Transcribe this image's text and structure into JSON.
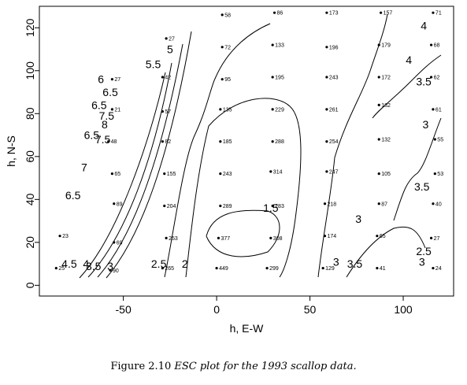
{
  "caption": {
    "prefix": "Figure 2.10",
    "italic": "ESC plot for the 1993 scallop data."
  },
  "chart_data": {
    "type": "scatter",
    "xlabel": "h, E-W",
    "ylabel": "h, N-S",
    "xlim": [
      -95,
      127
    ],
    "ylim": [
      -5,
      130
    ],
    "xticks": [
      -50,
      0,
      50,
      100
    ],
    "yticks": [
      0,
      20,
      40,
      60,
      80,
      100,
      120
    ],
    "points": [
      {
        "x": 3,
        "y": 126,
        "label": "58"
      },
      {
        "x": 31,
        "y": 127,
        "label": "86"
      },
      {
        "x": 59,
        "y": 127,
        "label": "173"
      },
      {
        "x": 88,
        "y": 127,
        "label": "157"
      },
      {
        "x": 116,
        "y": 127,
        "label": "71"
      },
      {
        "x": -27,
        "y": 115,
        "label": "27"
      },
      {
        "x": 3,
        "y": 111,
        "label": "72"
      },
      {
        "x": 30,
        "y": 112,
        "label": "133"
      },
      {
        "x": 59,
        "y": 111,
        "label": "196"
      },
      {
        "x": 87,
        "y": 112,
        "label": "179"
      },
      {
        "x": 115,
        "y": 112,
        "label": "68"
      },
      {
        "x": -56,
        "y": 96,
        "label": "27"
      },
      {
        "x": -29,
        "y": 97,
        "label": "42"
      },
      {
        "x": 3,
        "y": 96,
        "label": "95"
      },
      {
        "x": 30,
        "y": 97,
        "label": "195"
      },
      {
        "x": 59,
        "y": 97,
        "label": "243"
      },
      {
        "x": 87,
        "y": 97,
        "label": "172"
      },
      {
        "x": 115,
        "y": 97,
        "label": "62"
      },
      {
        "x": -56,
        "y": 82,
        "label": "21"
      },
      {
        "x": -29,
        "y": 81,
        "label": "57"
      },
      {
        "x": 2,
        "y": 82,
        "label": "135"
      },
      {
        "x": 30,
        "y": 82,
        "label": "229"
      },
      {
        "x": 59,
        "y": 82,
        "label": "261"
      },
      {
        "x": 87,
        "y": 84,
        "label": "182"
      },
      {
        "x": 116,
        "y": 82,
        "label": "61"
      },
      {
        "x": -58,
        "y": 67,
        "label": "48"
      },
      {
        "x": -29,
        "y": 67,
        "label": "82"
      },
      {
        "x": 2,
        "y": 67,
        "label": "185"
      },
      {
        "x": 30,
        "y": 67,
        "label": "288"
      },
      {
        "x": 59,
        "y": 67,
        "label": "254"
      },
      {
        "x": 87,
        "y": 68,
        "label": "132"
      },
      {
        "x": 117,
        "y": 68,
        "label": "55"
      },
      {
        "x": -56,
        "y": 52,
        "label": "65"
      },
      {
        "x": -28,
        "y": 52,
        "label": "155"
      },
      {
        "x": 2,
        "y": 52,
        "label": "243"
      },
      {
        "x": 29,
        "y": 53,
        "label": "314"
      },
      {
        "x": 59,
        "y": 53,
        "label": "247"
      },
      {
        "x": 87,
        "y": 52,
        "label": "105"
      },
      {
        "x": 117,
        "y": 52,
        "label": "53"
      },
      {
        "x": -55,
        "y": 38,
        "label": "89"
      },
      {
        "x": -28,
        "y": 37,
        "label": "204"
      },
      {
        "x": 2,
        "y": 37,
        "label": "289"
      },
      {
        "x": 30,
        "y": 37,
        "label": "283"
      },
      {
        "x": 58,
        "y": 38,
        "label": "218"
      },
      {
        "x": 87,
        "y": 38,
        "label": "87"
      },
      {
        "x": 116,
        "y": 38,
        "label": "40"
      },
      {
        "x": -84,
        "y": 23,
        "label": "23"
      },
      {
        "x": -55,
        "y": 20,
        "label": "69"
      },
      {
        "x": -27,
        "y": 22,
        "label": "253"
      },
      {
        "x": 1,
        "y": 22,
        "label": "377"
      },
      {
        "x": 29,
        "y": 22,
        "label": "308"
      },
      {
        "x": 58,
        "y": 23,
        "label": "174"
      },
      {
        "x": 86,
        "y": 23,
        "label": "65"
      },
      {
        "x": 115,
        "y": 22,
        "label": "27"
      },
      {
        "x": -86,
        "y": 8,
        "label": "25"
      },
      {
        "x": -57,
        "y": 7,
        "label": "90"
      },
      {
        "x": -29,
        "y": 8,
        "label": "265"
      },
      {
        "x": 0,
        "y": 8,
        "label": "449"
      },
      {
        "x": 27,
        "y": 8,
        "label": "299"
      },
      {
        "x": 57,
        "y": 8,
        "label": "129"
      },
      {
        "x": 86,
        "y": 8,
        "label": "41"
      },
      {
        "x": 116,
        "y": 8,
        "label": "24"
      }
    ],
    "contour_labels": [
      {
        "x": -62,
        "y": 96,
        "text": "6"
      },
      {
        "x": -34,
        "y": 103,
        "text": "5.5"
      },
      {
        "x": -25,
        "y": 110,
        "text": "5"
      },
      {
        "x": -57,
        "y": 90,
        "text": "6.5"
      },
      {
        "x": -63,
        "y": 84,
        "text": "6.5"
      },
      {
        "x": -59,
        "y": 79,
        "text": "7.5"
      },
      {
        "x": -60,
        "y": 75,
        "text": "8"
      },
      {
        "x": -67,
        "y": 70,
        "text": "6.5"
      },
      {
        "x": -61,
        "y": 68,
        "text": "7.5"
      },
      {
        "x": -71,
        "y": 55,
        "text": "7"
      },
      {
        "x": -77,
        "y": 42,
        "text": "6.5"
      },
      {
        "x": -79,
        "y": 10,
        "text": "4.5"
      },
      {
        "x": -70,
        "y": 10,
        "text": "4"
      },
      {
        "x": -66,
        "y": 9,
        "text": "3.5"
      },
      {
        "x": -57,
        "y": 9,
        "text": "3"
      },
      {
        "x": -31,
        "y": 10,
        "text": "2.5"
      },
      {
        "x": -17,
        "y": 10,
        "text": "2"
      },
      {
        "x": 29,
        "y": 36,
        "text": "1.5"
      },
      {
        "x": 76,
        "y": 31,
        "text": "3"
      },
      {
        "x": 64,
        "y": 11,
        "text": "3"
      },
      {
        "x": 74,
        "y": 10,
        "text": "3.5"
      },
      {
        "x": 111,
        "y": 16,
        "text": "2.5"
      },
      {
        "x": 110,
        "y": 11,
        "text": "3"
      },
      {
        "x": 110,
        "y": 46,
        "text": "3.5"
      },
      {
        "x": 112,
        "y": 75,
        "text": "3"
      },
      {
        "x": 111,
        "y": 95,
        "text": "3.5"
      },
      {
        "x": 103,
        "y": 105,
        "text": "4"
      },
      {
        "x": 111,
        "y": 121,
        "text": "4"
      }
    ]
  }
}
